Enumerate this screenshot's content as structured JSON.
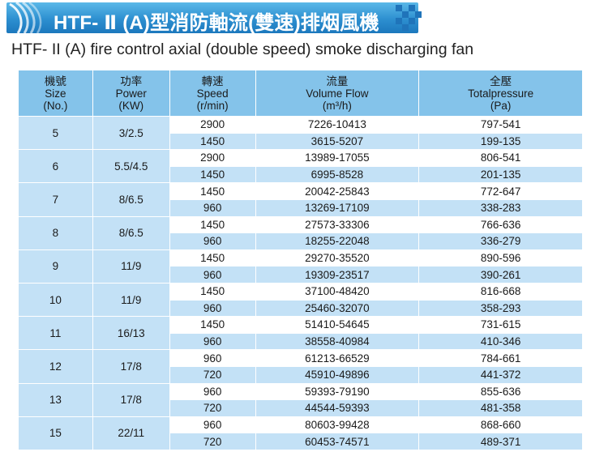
{
  "banner": {
    "title": "HTF- Ⅱ (A)型消防軸流(雙速)排烟風機"
  },
  "subtitle": "HTF- II (A) fire control axial (double speed) smoke discharging fan",
  "headers": [
    {
      "lines": [
        "機號",
        "Size",
        "(No.)"
      ]
    },
    {
      "lines": [
        "功率",
        "Power",
        "(KW)"
      ]
    },
    {
      "lines": [
        "轉速",
        "Speed",
        "(r/min)"
      ]
    },
    {
      "lines": [
        "流量",
        "Volume Flow",
        "(m³/h)"
      ]
    },
    {
      "lines": [
        "全壓",
        "Totalpressure",
        "(Pa)"
      ]
    }
  ],
  "rows": [
    {
      "size": "5",
      "power": "3/2.5",
      "speeds": [
        {
          "speed": "2900",
          "flow": "7226-10413",
          "pressure": "797-541"
        },
        {
          "speed": "1450",
          "flow": "3615-5207",
          "pressure": "199-135"
        }
      ]
    },
    {
      "size": "6",
      "power": "5.5/4.5",
      "speeds": [
        {
          "speed": "2900",
          "flow": "13989-17055",
          "pressure": "806-541"
        },
        {
          "speed": "1450",
          "flow": "6995-8528",
          "pressure": "201-135"
        }
      ]
    },
    {
      "size": "7",
      "power": "8/6.5",
      "speeds": [
        {
          "speed": "1450",
          "flow": "20042-25843",
          "pressure": "772-647"
        },
        {
          "speed": "960",
          "flow": "13269-17109",
          "pressure": "338-283"
        }
      ]
    },
    {
      "size": "8",
      "power": "8/6.5",
      "speeds": [
        {
          "speed": "1450",
          "flow": "27573-33306",
          "pressure": "766-636"
        },
        {
          "speed": "960",
          "flow": "18255-22048",
          "pressure": "336-279"
        }
      ]
    },
    {
      "size": "9",
      "power": "11/9",
      "speeds": [
        {
          "speed": "1450",
          "flow": "29270-35520",
          "pressure": "890-596"
        },
        {
          "speed": "960",
          "flow": "19309-23517",
          "pressure": "390-261"
        }
      ]
    },
    {
      "size": "10",
      "power": "11/9",
      "speeds": [
        {
          "speed": "1450",
          "flow": "37100-48420",
          "pressure": "816-668"
        },
        {
          "speed": "960",
          "flow": "25460-32070",
          "pressure": "358-293"
        }
      ]
    },
    {
      "size": "11",
      "power": "16/13",
      "speeds": [
        {
          "speed": "1450",
          "flow": "51410-54645",
          "pressure": "731-615"
        },
        {
          "speed": "960",
          "flow": "38558-40984",
          "pressure": "410-346"
        }
      ]
    },
    {
      "size": "12",
      "power": "17/8",
      "speeds": [
        {
          "speed": "960",
          "flow": "61213-66529",
          "pressure": "784-661"
        },
        {
          "speed": "720",
          "flow": "45910-49896",
          "pressure": "441-372"
        }
      ]
    },
    {
      "size": "13",
      "power": "17/8",
      "speeds": [
        {
          "speed": "960",
          "flow": "59393-79190",
          "pressure": "855-636"
        },
        {
          "speed": "720",
          "flow": "44544-59393",
          "pressure": "481-358"
        }
      ]
    },
    {
      "size": "15",
      "power": "22/11",
      "speeds": [
        {
          "speed": "960",
          "flow": "80603-99428",
          "pressure": "868-660"
        },
        {
          "speed": "720",
          "flow": "60453-74571",
          "pressure": "489-371"
        }
      ]
    }
  ],
  "colors": {
    "banner": "#2d8fd0",
    "header_bg": "#84c3ea",
    "stripe": "#c3e1f6",
    "border": "#ffffff"
  }
}
